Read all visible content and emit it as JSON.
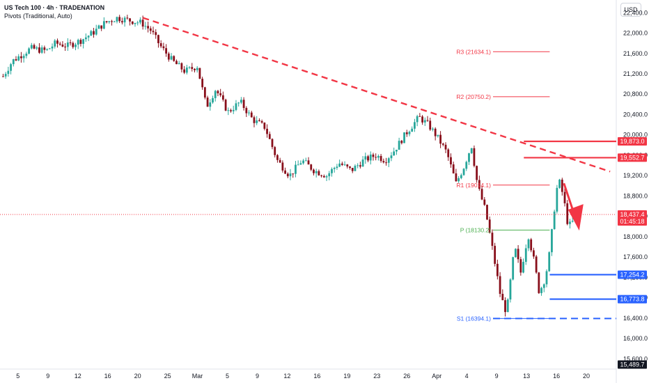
{
  "header": {
    "title": "US Tech 100 · 4h · TRADENATION",
    "subtitle": "Pivots (Traditional, Auto)",
    "currency": "USD"
  },
  "colors": {
    "up": "#26a69a",
    "down": "#880e1a",
    "trendline": "#f23645",
    "resistance": "#f23645",
    "support": "#2962ff",
    "pivot_r": "#f23645",
    "pivot_p": "#4caf50",
    "pivot_s": "#2962ff",
    "current_price": "#f23645"
  },
  "chart_data": {
    "type": "candlestick",
    "symbol": "US Tech 100",
    "timeframe": "4h",
    "ylim": [
      15400,
      22650
    ],
    "y_ticks": [
      "22,400.0",
      "22,000.0",
      "21,600.0",
      "21,200.0",
      "20,800.0",
      "20,400.0",
      "20,000.0",
      "19,600.0",
      "19,200.0",
      "18,800.0",
      "18,400.0",
      "18,000.0",
      "17,600.0",
      "17,200.0",
      "16,800.0",
      "16,400.0",
      "16,000.0",
      "15,600.0"
    ],
    "y_tick_values": [
      22400,
      22000,
      21600,
      21200,
      20800,
      20400,
      20000,
      19600,
      19200,
      18800,
      18400,
      18000,
      17600,
      17200,
      16800,
      16400,
      16000,
      15600
    ],
    "x_ticks": [
      "5",
      "9",
      "12",
      "16",
      "20",
      "25",
      "Mar",
      "5",
      "9",
      "12",
      "16",
      "19",
      "23",
      "26",
      "Apr",
      "4",
      "9",
      "13",
      "16",
      "20"
    ],
    "price_path": [
      {
        "x": 0.005,
        "y": 21150
      },
      {
        "x": 0.02,
        "y": 21450
      },
      {
        "x": 0.05,
        "y": 21700
      },
      {
        "x": 0.075,
        "y": 21650
      },
      {
        "x": 0.09,
        "y": 21800
      },
      {
        "x": 0.11,
        "y": 21750
      },
      {
        "x": 0.13,
        "y": 21850
      },
      {
        "x": 0.15,
        "y": 22000
      },
      {
        "x": 0.17,
        "y": 22200
      },
      {
        "x": 0.19,
        "y": 22300
      },
      {
        "x": 0.21,
        "y": 22250
      },
      {
        "x": 0.23,
        "y": 22200
      },
      {
        "x": 0.245,
        "y": 22050
      },
      {
        "x": 0.26,
        "y": 21750
      },
      {
        "x": 0.28,
        "y": 21450
      },
      {
        "x": 0.3,
        "y": 21250
      },
      {
        "x": 0.32,
        "y": 21350
      },
      {
        "x": 0.335,
        "y": 20550
      },
      {
        "x": 0.35,
        "y": 20900
      },
      {
        "x": 0.37,
        "y": 20450
      },
      {
        "x": 0.39,
        "y": 20650
      },
      {
        "x": 0.41,
        "y": 20300
      },
      {
        "x": 0.43,
        "y": 20150
      },
      {
        "x": 0.45,
        "y": 19500
      },
      {
        "x": 0.47,
        "y": 19200
      },
      {
        "x": 0.49,
        "y": 19500
      },
      {
        "x": 0.51,
        "y": 19300
      },
      {
        "x": 0.53,
        "y": 19200
      },
      {
        "x": 0.55,
        "y": 19450
      },
      {
        "x": 0.57,
        "y": 19300
      },
      {
        "x": 0.59,
        "y": 19500
      },
      {
        "x": 0.61,
        "y": 19600
      },
      {
        "x": 0.625,
        "y": 19500
      },
      {
        "x": 0.64,
        "y": 19700
      },
      {
        "x": 0.66,
        "y": 20050
      },
      {
        "x": 0.68,
        "y": 20350
      },
      {
        "x": 0.695,
        "y": 20200
      },
      {
        "x": 0.71,
        "y": 19950
      },
      {
        "x": 0.725,
        "y": 19650
      },
      {
        "x": 0.74,
        "y": 19050
      },
      {
        "x": 0.752,
        "y": 19350
      },
      {
        "x": 0.765,
        "y": 19800
      },
      {
        "x": 0.775,
        "y": 19000
      },
      {
        "x": 0.788,
        "y": 18500
      },
      {
        "x": 0.8,
        "y": 17700
      },
      {
        "x": 0.812,
        "y": 16850
      },
      {
        "x": 0.822,
        "y": 16500
      },
      {
        "x": 0.835,
        "y": 17800
      },
      {
        "x": 0.845,
        "y": 17300
      },
      {
        "x": 0.857,
        "y": 18050
      },
      {
        "x": 0.867,
        "y": 17500
      },
      {
        "x": 0.875,
        "y": 16900
      },
      {
        "x": 0.885,
        "y": 17200
      },
      {
        "x": 0.892,
        "y": 17700
      },
      {
        "x": 0.9,
        "y": 18600
      },
      {
        "x": 0.906,
        "y": 19150
      },
      {
        "x": 0.914,
        "y": 18800
      },
      {
        "x": 0.922,
        "y": 18200
      },
      {
        "x": 0.93,
        "y": 18300
      },
      {
        "x": 0.938,
        "y": 18480
      },
      {
        "x": 0.945,
        "y": 18437
      }
    ],
    "pivots": {
      "R3": {
        "label": "R3 (21634.1)",
        "value": 21634.1
      },
      "R2": {
        "label": "R2 (20750.2)",
        "value": 20750.2
      },
      "R1": {
        "label": "R1 (19014.1)",
        "value": 19014.1
      },
      "P": {
        "label": "P (18130.2)",
        "value": 18130.2
      },
      "S1": {
        "label": "S1 (16394.1)",
        "value": 16394.1
      }
    },
    "levels": {
      "resistance": [
        {
          "label": "19,873.0",
          "value": 19873.0
        },
        {
          "label": "19,552.7",
          "value": 19552.7
        }
      ],
      "support": [
        {
          "label": "17,254.2",
          "value": 17254.2
        },
        {
          "label": "16,773.8",
          "value": 16773.8
        }
      ],
      "bottom_tag": {
        "label": "15,489.7",
        "value": 15489.7
      }
    },
    "current_price": {
      "label": "18,437.4",
      "countdown": "01:45:18",
      "value": 18437.4
    },
    "trendline": {
      "start": {
        "x": 0.232,
        "y": 22300
      },
      "end": {
        "x": 0.99,
        "y": 19280
      }
    }
  }
}
